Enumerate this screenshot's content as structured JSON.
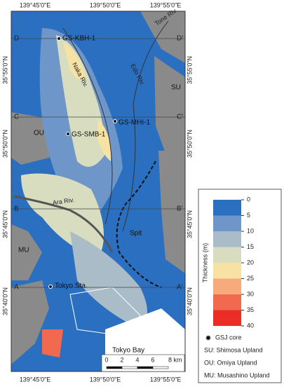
{
  "map": {
    "top_coords": [
      "139°45'0\"E",
      "139°50'0\"E",
      "139°55'0\"E"
    ],
    "bottom_coords": [
      "139°45'0\"E",
      "139°50'0\"E",
      "139°55'0\"E"
    ],
    "left_coords": [
      "35°55'0\"N",
      "35°50'0\"N",
      "35°45'0\"N",
      "35°40'0\"N"
    ],
    "right_coords": [
      "35°55'0\"N",
      "35°50'0\"N",
      "35°45'0\"N",
      "35°40'0\"N"
    ],
    "sections": [
      {
        "left": "D",
        "right": "D'"
      },
      {
        "left": "C",
        "right": "C'"
      },
      {
        "left": "B",
        "right": "B'"
      },
      {
        "left": "A",
        "right": "A'"
      }
    ],
    "cores": [
      "GS-KBH-1",
      "GS-MHI-1",
      "GS-SMB-1"
    ],
    "places": {
      "station": "Tokyo Sta.",
      "bay": "Tokyo Bay",
      "spit": "Spit"
    },
    "rivers": {
      "naka": "Naka Riv.",
      "edo": "Edo Riv.",
      "tone": "Tone Riv.",
      "ara": "Ara Riv."
    },
    "uplands": {
      "su": "SU",
      "ou": "OU",
      "mu": "MU"
    },
    "scale": {
      "ticks": [
        "0",
        "2",
        "4",
        "6",
        "8 km"
      ]
    }
  },
  "legend": {
    "title": "Thickness (m)",
    "ticks": [
      "0",
      "5",
      "10",
      "15",
      "20",
      "25",
      "30",
      "35",
      "40"
    ],
    "colors": [
      "#2a6fc0",
      "#6f96c8",
      "#a9bcc7",
      "#d8ddc0",
      "#f7e2a4",
      "#f7aa7b",
      "#f16a50",
      "#ec2c26"
    ],
    "core": "GSJ core",
    "entries": [
      "SU: Shimosa Upland",
      "OU: Omiya Upland",
      "MU: Musashino Upland"
    ]
  }
}
